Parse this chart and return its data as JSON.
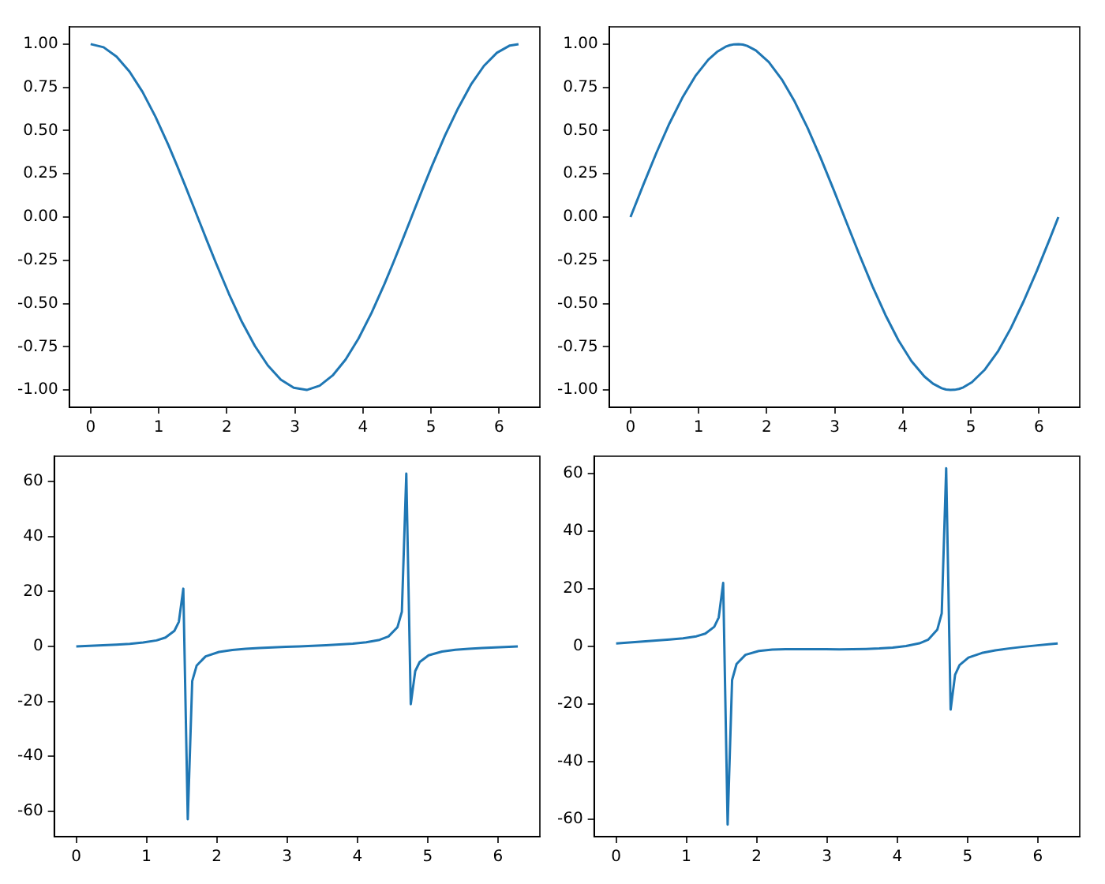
{
  "chart_data": [
    {
      "type": "line",
      "x": [
        0,
        0.1904,
        0.3808,
        0.5712,
        0.7616,
        0.952,
        1.1424,
        1.2693,
        1.3963,
        1.4597,
        1.5232,
        1.5867,
        1.6501,
        1.7136,
        1.8405,
        2.0309,
        2.2213,
        2.4117,
        2.6021,
        2.7925,
        2.9829,
        3.1733,
        3.3637,
        3.5541,
        3.7445,
        3.9349,
        4.1253,
        4.3157,
        4.4427,
        4.5696,
        4.6331,
        4.6965,
        4.76,
        4.8234,
        4.8869,
        5.0138,
        5.2042,
        5.3946,
        5.585,
        5.7754,
        5.9658,
        6.1562,
        6.2832
      ],
      "series": [
        {
          "color": "#1f77b4",
          "values": [
            1,
            0.982,
            0.928,
            0.841,
            0.724,
            0.58,
            0.416,
            0.297,
            0.174,
            0.111,
            0.048,
            -0.016,
            -0.079,
            -0.142,
            -0.266,
            -0.444,
            -0.606,
            -0.745,
            -0.858,
            -0.94,
            -0.987,
            -1.0,
            -0.975,
            -0.916,
            -0.824,
            -0.702,
            -0.554,
            -0.386,
            -0.266,
            -0.142,
            -0.079,
            -0.016,
            0.048,
            0.111,
            0.174,
            0.297,
            0.472,
            0.628,
            0.766,
            0.874,
            0.95,
            0.992,
            1
          ]
        }
      ],
      "xlim": [
        -0.314,
        6.597
      ],
      "ylim": [
        -1.1,
        1.1
      ],
      "xticks": [
        0,
        1,
        2,
        3,
        4,
        5,
        6
      ],
      "yticks": [
        {
          "value": -1,
          "label": "-1.00"
        },
        {
          "value": -0.75,
          "label": "-0.75"
        },
        {
          "value": -0.5,
          "label": "-0.50"
        },
        {
          "value": -0.25,
          "label": "-0.25"
        },
        {
          "value": 0,
          "label": "0.00"
        },
        {
          "value": 0.25,
          "label": "0.25"
        },
        {
          "value": 0.5,
          "label": "0.50"
        },
        {
          "value": 0.75,
          "label": "0.75"
        },
        {
          "value": 1,
          "label": "1.00"
        }
      ]
    },
    {
      "type": "line",
      "x": [
        0,
        0.1904,
        0.3808,
        0.5712,
        0.7616,
        0.952,
        1.1424,
        1.2693,
        1.3963,
        1.4597,
        1.5232,
        1.5867,
        1.6501,
        1.7136,
        1.8405,
        2.0309,
        2.2213,
        2.4117,
        2.6021,
        2.7925,
        2.9829,
        3.1733,
        3.3637,
        3.5541,
        3.7445,
        3.9349,
        4.1253,
        4.3157,
        4.4427,
        4.5696,
        4.6331,
        4.6965,
        4.76,
        4.8234,
        4.8869,
        5.0138,
        5.2042,
        5.3946,
        5.585,
        5.7754,
        5.9658,
        6.1562,
        6.2832
      ],
      "series": [
        {
          "color": "#1f77b4",
          "values": [
            0,
            0.189,
            0.372,
            0.541,
            0.69,
            0.815,
            0.91,
            0.955,
            0.985,
            0.994,
            0.999,
            1.0,
            0.997,
            0.99,
            0.964,
            0.896,
            0.796,
            0.667,
            0.514,
            0.342,
            0.158,
            -0.032,
            -0.22,
            -0.401,
            -0.567,
            -0.713,
            -0.833,
            -0.922,
            -0.964,
            -0.99,
            -0.997,
            -1.0,
            -0.999,
            -0.994,
            -0.985,
            -0.955,
            -0.882,
            -0.778,
            -0.643,
            -0.485,
            -0.312,
            -0.127,
            0
          ]
        }
      ],
      "xlim": [
        -0.314,
        6.597
      ],
      "ylim": [
        -1.1,
        1.1
      ],
      "xticks": [
        0,
        1,
        2,
        3,
        4,
        5,
        6
      ],
      "yticks": [
        {
          "value": -1,
          "label": "-1.00"
        },
        {
          "value": -0.75,
          "label": "-0.75"
        },
        {
          "value": -0.5,
          "label": "-0.50"
        },
        {
          "value": -0.25,
          "label": "-0.25"
        },
        {
          "value": 0,
          "label": "0.00"
        },
        {
          "value": 0.25,
          "label": "0.25"
        },
        {
          "value": 0.5,
          "label": "0.50"
        },
        {
          "value": 0.75,
          "label": "0.75"
        },
        {
          "value": 1,
          "label": "1.00"
        }
      ]
    },
    {
      "type": "line",
      "x": [
        0,
        0.1904,
        0.3808,
        0.5712,
        0.7616,
        0.952,
        1.1424,
        1.2693,
        1.3963,
        1.4597,
        1.5232,
        1.5867,
        1.6501,
        1.7136,
        1.8405,
        2.0309,
        2.2213,
        2.4117,
        2.6021,
        2.7925,
        2.9829,
        3.1733,
        3.3637,
        3.5541,
        3.7445,
        3.9349,
        4.1253,
        4.3157,
        4.4427,
        4.5696,
        4.6331,
        4.6965,
        4.76,
        4.8234,
        4.8869,
        5.0138,
        5.2042,
        5.3946,
        5.585,
        5.7754,
        5.9658,
        6.1562,
        6.2832
      ],
      "series": [
        {
          "color": "#1f77b4",
          "values": [
            0,
            0.19,
            0.4,
            0.64,
            0.95,
            1.41,
            2.19,
            3.22,
            5.67,
            8.96,
            21.0,
            -62.9,
            -12.58,
            -6.95,
            -3.62,
            -2.02,
            -1.31,
            -0.89,
            -0.6,
            -0.36,
            -0.16,
            0.03,
            0.23,
            0.44,
            0.69,
            1.02,
            1.51,
            2.39,
            3.62,
            6.95,
            12.58,
            62.9,
            -21.0,
            -8.97,
            -5.67,
            -3.22,
            -1.87,
            -1.23,
            -0.84,
            -0.56,
            -0.33,
            -0.13,
            0
          ]
        }
      ],
      "xlim": [
        -0.314,
        6.597
      ],
      "ylim": [
        -69.2,
        69.2
      ],
      "xticks": [
        0,
        1,
        2,
        3,
        4,
        5,
        6
      ],
      "yticks": [
        -60,
        -40,
        -20,
        0,
        20,
        40,
        60
      ]
    },
    {
      "type": "line",
      "x": [
        0,
        0.1904,
        0.3808,
        0.5712,
        0.7616,
        0.952,
        1.1424,
        1.2693,
        1.3963,
        1.4597,
        1.5232,
        1.5867,
        1.6501,
        1.7136,
        1.8405,
        2.0309,
        2.2213,
        2.4117,
        2.6021,
        2.7925,
        2.9829,
        3.1733,
        3.3637,
        3.5541,
        3.7445,
        3.9349,
        4.1253,
        4.3157,
        4.4427,
        4.5696,
        4.6331,
        4.6965,
        4.76,
        4.8234,
        4.8869,
        5.0138,
        5.2042,
        5.3946,
        5.585,
        5.7754,
        5.9658,
        6.1562,
        6.2832
      ],
      "series": [
        {
          "color": "#1f77b4",
          "values": [
            1,
            1.36,
            1.7,
            2.03,
            2.37,
            2.8,
            3.52,
            4.47,
            6.83,
            10.07,
            22.05,
            -61.9,
            -11.66,
            -6.1,
            -2.92,
            -1.57,
            -1.12,
            -0.97,
            -0.94,
            -0.96,
            -0.99,
            -1.0,
            -0.97,
            -0.88,
            -0.7,
            -0.4,
            0.12,
            1.08,
            2.39,
            5.82,
            11.5,
            61.9,
            -21.95,
            -9.85,
            -6.48,
            -3.88,
            -2.28,
            -1.38,
            -0.72,
            -0.17,
            0.31,
            0.74,
            1
          ]
        }
      ],
      "xlim": [
        -0.314,
        6.597
      ],
      "ylim": [
        -66.1,
        66.1
      ],
      "xticks": [
        0,
        1,
        2,
        3,
        4,
        5,
        6
      ],
      "yticks": [
        -60,
        -40,
        -20,
        0,
        20,
        40,
        60
      ]
    }
  ]
}
